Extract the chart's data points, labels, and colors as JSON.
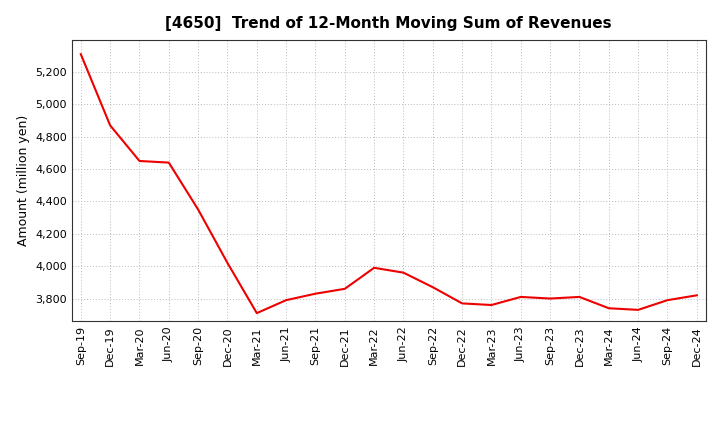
{
  "title": "[4650]  Trend of 12-Month Moving Sum of Revenues",
  "ylabel": "Amount (million yen)",
  "line_color": "#EE0000",
  "background_color": "#FFFFFF",
  "grid_color": "#BBBBBB",
  "ylim": [
    3660,
    5400
  ],
  "yticks": [
    3800,
    4000,
    4200,
    4400,
    4600,
    4800,
    5000,
    5200
  ],
  "x_labels": [
    "Sep-19",
    "Dec-19",
    "Mar-20",
    "Jun-20",
    "Sep-20",
    "Dec-20",
    "Mar-21",
    "Jun-21",
    "Sep-21",
    "Dec-21",
    "Mar-22",
    "Jun-22",
    "Sep-22",
    "Dec-22",
    "Mar-23",
    "Jun-23",
    "Sep-23",
    "Dec-23",
    "Mar-24",
    "Jun-24",
    "Sep-24",
    "Dec-24"
  ],
  "values": [
    5310,
    4870,
    4650,
    4640,
    4350,
    4020,
    3710,
    3790,
    3830,
    3860,
    3990,
    3960,
    3870,
    3770,
    3760,
    3810,
    3800,
    3810,
    3740,
    3730,
    3790,
    3820
  ],
  "title_fontsize": 11,
  "ylabel_fontsize": 9,
  "tick_fontsize": 8
}
